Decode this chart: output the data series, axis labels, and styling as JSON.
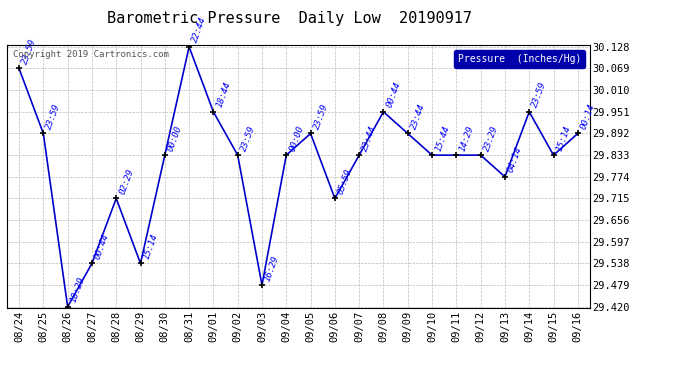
{
  "title": "Barometric Pressure  Daily Low  20190917",
  "ylabel": "Pressure  (Inches/Hg)",
  "copyright": "Copyright 2019 Cartronics.com",
  "background_color": "#ffffff",
  "plot_bg_color": "#ffffff",
  "line_color": "#0000cc",
  "marker_color": "#000000",
  "label_color": "#0000ff",
  "grid_color": "#bbbbbb",
  "dates": [
    "08/24",
    "08/25",
    "08/26",
    "08/27",
    "08/28",
    "08/29",
    "08/30",
    "08/31",
    "09/01",
    "09/02",
    "09/03",
    "09/04",
    "09/05",
    "09/06",
    "09/07",
    "09/08",
    "09/09",
    "09/10",
    "09/11",
    "09/12",
    "09/13",
    "09/14",
    "09/15",
    "09/16"
  ],
  "values": [
    30.069,
    29.892,
    29.42,
    29.538,
    29.715,
    29.538,
    29.833,
    30.128,
    29.951,
    29.833,
    29.479,
    29.833,
    29.892,
    29.715,
    29.833,
    29.951,
    29.892,
    29.833,
    29.833,
    29.833,
    29.774,
    29.951,
    29.833,
    29.892
  ],
  "time_labels": [
    "23:59",
    "23:59",
    "18:29",
    "00:44",
    "02:29",
    "15:14",
    "00:00",
    "22:44",
    "18:44",
    "23:59",
    "16:29",
    "00:00",
    "23:59",
    "05:59",
    "23:44",
    "00:44",
    "23:44",
    "15:44",
    "14:29",
    "23:29",
    "04:14",
    "23:59",
    "15:14",
    "00:14"
  ],
  "ylim_min": 29.42,
  "ylim_max": 30.128,
  "yticks": [
    29.42,
    29.479,
    29.538,
    29.597,
    29.656,
    29.715,
    29.774,
    29.833,
    29.892,
    29.951,
    30.01,
    30.069,
    30.128
  ],
  "legend_box_color": "#0000aa",
  "legend_text_color": "#ffffff",
  "title_fontsize": 11,
  "label_fontsize": 6.5,
  "tick_fontsize": 7.5,
  "ytick_fontsize": 7.5,
  "copyright_fontsize": 6.5
}
